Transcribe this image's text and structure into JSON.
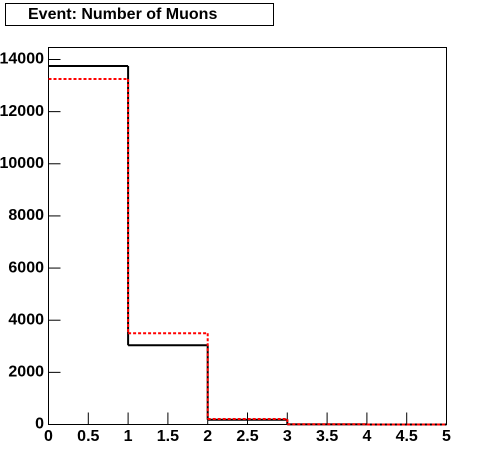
{
  "chart_data": {
    "type": "histogram",
    "title": "Event: Number of Muons",
    "bins": [
      0,
      1,
      2,
      3,
      4,
      5
    ],
    "series": [
      {
        "color": "#000000",
        "dash": false,
        "values": [
          13750,
          3040,
          180,
          5,
          0
        ]
      },
      {
        "color": "#ff0000",
        "dash": true,
        "values": [
          13250,
          3500,
          210,
          10,
          0
        ]
      }
    ],
    "xlim": [
      0,
      5
    ],
    "xticks": [
      0,
      0.5,
      1,
      1.5,
      2,
      2.5,
      3,
      3.5,
      4,
      4.5,
      5
    ],
    "ylim": [
      0,
      14460
    ],
    "yticks": [
      0,
      2000,
      4000,
      6000,
      8000,
      10000,
      12000,
      14000
    ]
  }
}
